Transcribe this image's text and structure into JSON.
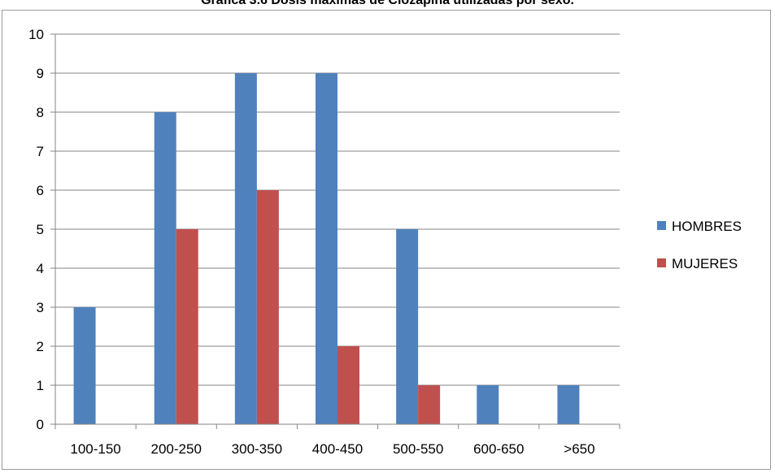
{
  "chart_data": {
    "type": "bar",
    "title": "Gráfica 3.6 Dosis máximas de Clozapina utilizadas por sexo.",
    "categories": [
      "100-150",
      "200-250",
      "300-350",
      "400-450",
      "500-550",
      "600-650",
      ">650"
    ],
    "series": [
      {
        "name": "HOMBRES",
        "color": "#4f81bd",
        "values": [
          3,
          8,
          9,
          9,
          5,
          1,
          1
        ]
      },
      {
        "name": "MUJERES",
        "color": "#c0504d",
        "values": [
          0,
          5,
          6,
          2,
          1,
          0,
          0
        ]
      }
    ],
    "ylim": [
      0,
      10
    ],
    "yticks": [
      "0",
      "1",
      "2",
      "3",
      "4",
      "5",
      "6",
      "7",
      "8",
      "9",
      "10"
    ],
    "grid": true,
    "legend": "right"
  }
}
